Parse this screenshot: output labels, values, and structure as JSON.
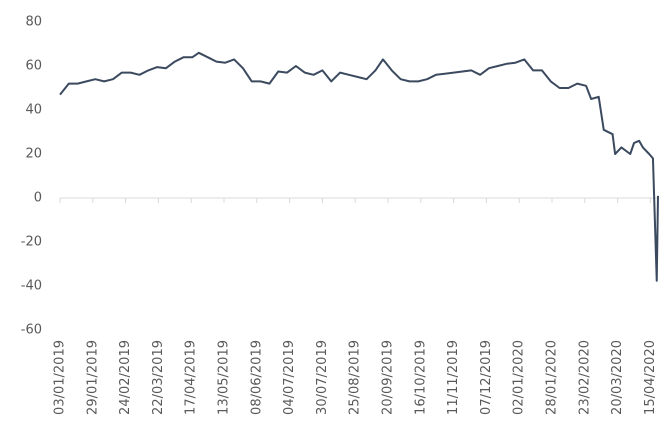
{
  "chart_data": {
    "type": "line",
    "x": [
      "03/01/2019",
      "10/01/2019",
      "17/01/2019",
      "24/01/2019",
      "31/01/2019",
      "07/02/2019",
      "14/02/2019",
      "21/02/2019",
      "28/02/2019",
      "07/03/2019",
      "14/03/2019",
      "21/03/2019",
      "28/03/2019",
      "04/04/2019",
      "11/04/2019",
      "18/04/2019",
      "23/04/2019",
      "30/04/2019",
      "07/05/2019",
      "14/05/2019",
      "21/05/2019",
      "28/05/2019",
      "04/06/2019",
      "11/06/2019",
      "18/06/2019",
      "25/06/2019",
      "02/07/2019",
      "09/07/2019",
      "16/07/2019",
      "23/07/2019",
      "30/07/2019",
      "06/08/2019",
      "13/08/2019",
      "20/08/2019",
      "27/08/2019",
      "03/09/2019",
      "10/09/2019",
      "16/09/2019",
      "23/09/2019",
      "30/09/2019",
      "07/10/2019",
      "14/10/2019",
      "21/10/2019",
      "28/10/2019",
      "04/11/2019",
      "11/11/2019",
      "18/11/2019",
      "25/11/2019",
      "02/12/2019",
      "09/12/2019",
      "16/12/2019",
      "23/12/2019",
      "30/12/2019",
      "06/01/2020",
      "13/01/2020",
      "20/01/2020",
      "27/01/2020",
      "03/02/2020",
      "10/02/2020",
      "17/02/2020",
      "24/02/2020",
      "28/02/2020",
      "05/03/2020",
      "09/03/2020",
      "16/03/2020",
      "18/03/2020",
      "23/03/2020",
      "30/03/2020",
      "02/04/2020",
      "06/04/2020",
      "09/04/2020",
      "14/04/2020",
      "17/04/2020",
      "20/04/2020",
      "21/04/2020"
    ],
    "series": [
      {
        "color": "#3b4a5f",
        "values": [
          47,
          52,
          52,
          53,
          54,
          53,
          54,
          57,
          57,
          56,
          58,
          59.5,
          59,
          62,
          64,
          64,
          66,
          64,
          62,
          61.5,
          63,
          59,
          53,
          53,
          52,
          57.5,
          57,
          60,
          57,
          56,
          58,
          53,
          57,
          56,
          55,
          54,
          58,
          63,
          58,
          54,
          53,
          53,
          54,
          56,
          56.5,
          57,
          57.5,
          58,
          56,
          59,
          60,
          61,
          61.5,
          63,
          58,
          58,
          53,
          50,
          50,
          52,
          51,
          45,
          46,
          31,
          29,
          20,
          23,
          20,
          25,
          26,
          23,
          20,
          18,
          -37.6,
          1
        ]
      }
    ],
    "xlim": [
      "03/01/2019",
      "21/04/2020"
    ],
    "xticks": [
      "03/01/2019",
      "29/01/2019",
      "24/02/2019",
      "22/03/2019",
      "17/04/2019",
      "13/05/2019",
      "08/06/2019",
      "04/07/2019",
      "30/07/2019",
      "25/08/2019",
      "20/09/2019",
      "16/10/2019",
      "11/11/2019",
      "07/12/2019",
      "02/01/2020",
      "28/01/2020",
      "23/02/2020",
      "20/03/2020",
      "15/04/2020"
    ],
    "ylim": [
      -60,
      80
    ],
    "yticks": [
      -60,
      -40,
      -20,
      0,
      20,
      40,
      60,
      80
    ],
    "grid": false
  }
}
